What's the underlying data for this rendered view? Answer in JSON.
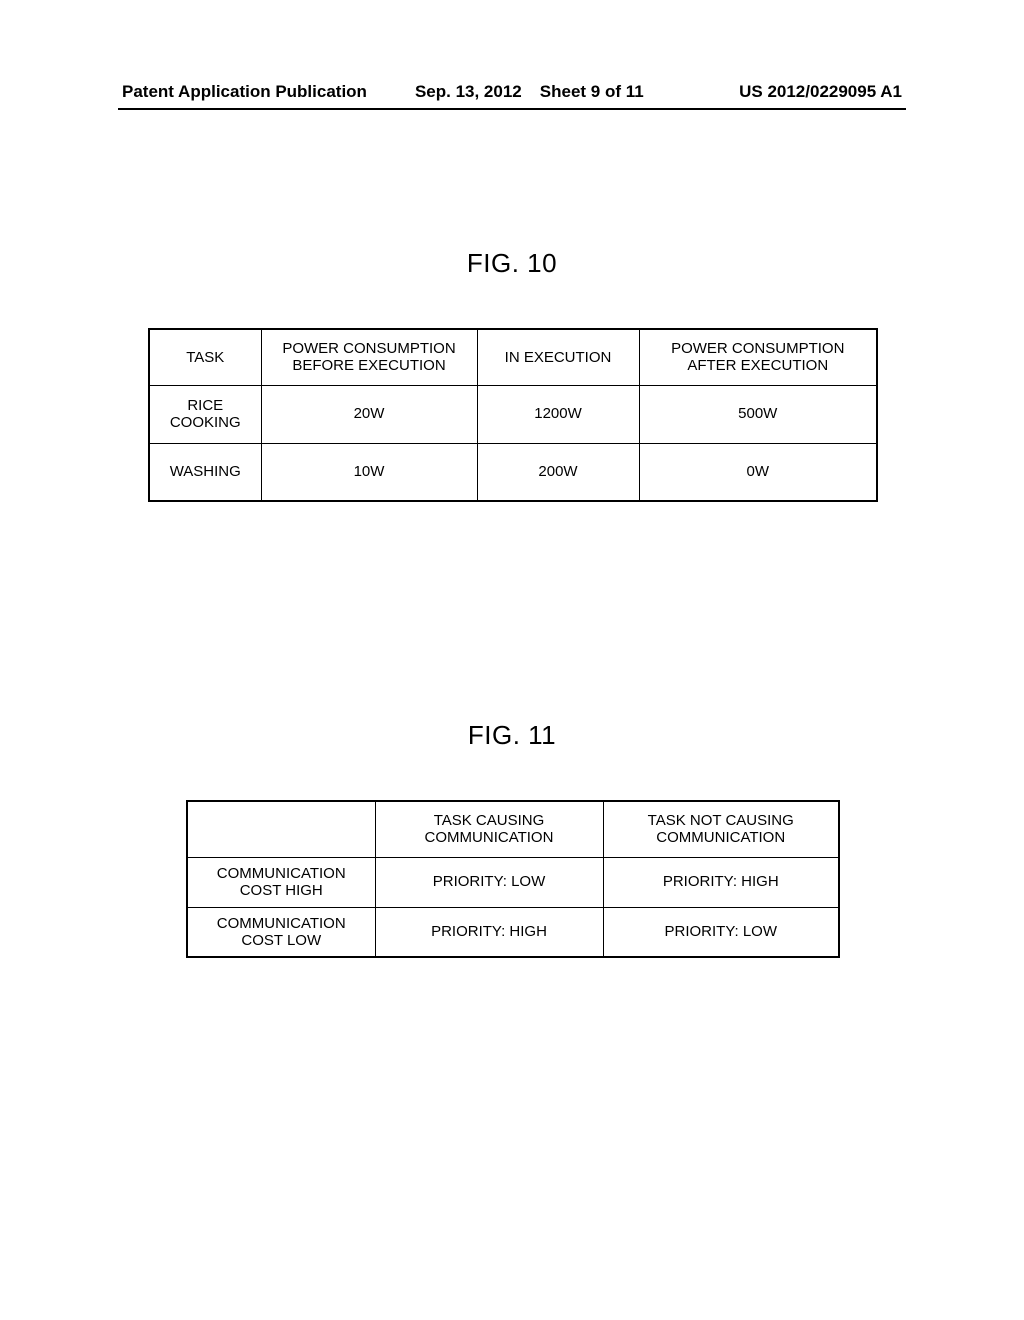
{
  "header": {
    "publication_label": "Patent Application Publication",
    "date": "Sep. 13, 2012",
    "sheet": "Sheet 9 of 11",
    "patent_number": "US 2012/0229095 A1"
  },
  "figures": {
    "fig10": {
      "title": "FIG. 10",
      "columns": [
        "TASK",
        "POWER CONSUMPTION\nBEFORE EXECUTION",
        "IN EXECUTION",
        "POWER CONSUMPTION\nAFTER EXECUTION"
      ],
      "rows": [
        {
          "task": "RICE\nCOOKING",
          "before": "20W",
          "in": "1200W",
          "after": "500W"
        },
        {
          "task": "WASHING",
          "before": "10W",
          "in": "200W",
          "after": "0W"
        }
      ]
    },
    "fig11": {
      "title": "FIG. 11",
      "columns": [
        "",
        "TASK CAUSING\nCOMMUNICATION",
        "TASK NOT CAUSING\nCOMMUNICATION"
      ],
      "rows": [
        {
          "label": "COMMUNICATION\nCOST HIGH",
          "causing": "PRIORITY: LOW",
          "not_causing": "PRIORITY: HIGH"
        },
        {
          "label": "COMMUNICATION\nCOST LOW",
          "causing": "PRIORITY: HIGH",
          "not_causing": "PRIORITY: LOW"
        }
      ]
    }
  },
  "style": {
    "background_color": "#ffffff",
    "text_color": "#000000",
    "border_color": "#000000",
    "header_font_size": 17,
    "figure_title_font_size": 26,
    "table_font_size": 15
  }
}
